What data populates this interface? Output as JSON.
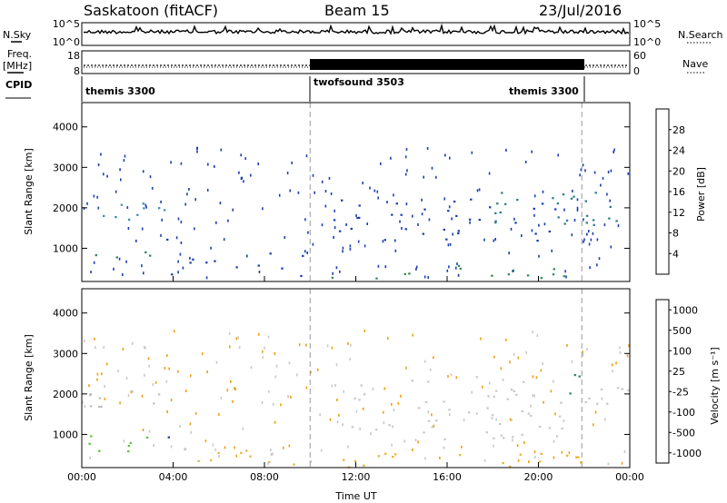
{
  "header": {
    "station": "Saskatoon (fitACF)",
    "beam": "Beam 15",
    "date": "23/Jul/2016"
  },
  "top_strips": {
    "nsky_label": "N.Sky",
    "nsky_ticks": [
      "10^5",
      "10^0"
    ],
    "nsearch_label": "N.Search",
    "nsearch_ticks": [
      "10^5",
      "10^0"
    ],
    "freq_label_1": "Freq.",
    "freq_label_2": "[MHz]",
    "freq_ticks": [
      "18",
      "8"
    ],
    "nave_label": "Nave",
    "nave_ticks": [
      "60",
      "0"
    ],
    "cpid_label": "CPID",
    "cpid_modes": [
      "themis 3300",
      "twofsound 3503",
      "themis 3300"
    ]
  },
  "chart_data": [
    {
      "type": "heatmap",
      "name": "power-panel",
      "ylabel": "Slant Range [km]",
      "xlim_hours": [
        0,
        24
      ],
      "ylim_km": [
        180,
        4600
      ],
      "y_ticks": [
        "1000",
        "2000",
        "3000",
        "4000"
      ],
      "x_ticks": [
        "00:00",
        "04:00",
        "08:00",
        "12:00",
        "16:00",
        "20:00",
        "00:00"
      ],
      "colorbar": {
        "label": "Power [dB]",
        "ticks": [
          "4",
          "8",
          "12",
          "16",
          "20",
          "24",
          "28"
        ],
        "colors": [
          "#0000ee",
          "#1c3fb0",
          "#2e7d8c",
          "#2e8b57",
          "#7ccd3c",
          "#f0c419",
          "#f59a1a",
          "#f06018",
          "#e02020"
        ]
      },
      "vertical_markers_hours": [
        10.0,
        21.9
      ],
      "regions": [
        {
          "t": [
            0.2,
            3.7
          ],
          "r": [
            1650,
            2150
          ],
          "color": "#3a8fb0",
          "density": 0.6
        },
        {
          "t": [
            0.2,
            3.0
          ],
          "r": [
            650,
            950
          ],
          "color": "#2e8b57",
          "density": 0.6
        },
        {
          "t": [
            3.6,
            4.0
          ],
          "r": [
            300,
            1500
          ],
          "color": "#1c3fb0",
          "density": 0.5
        },
        {
          "t": [
            4.2,
            10.0
          ],
          "r": [
            300,
            1000
          ],
          "color": "#1c3fb0",
          "density": 0.3
        },
        {
          "t": [
            10.0,
            22.0
          ],
          "r": [
            250,
            600
          ],
          "color": "#2e8b57",
          "density": 0.4
        },
        {
          "t": [
            11.0,
            21.0
          ],
          "r": [
            1200,
            2300
          ],
          "color": "#1c3fb0",
          "density": 0.35
        },
        {
          "t": [
            18.0,
            24.0
          ],
          "r": [
            1600,
            2500
          ],
          "color": "#2e7d8c",
          "density": 0.55
        }
      ]
    },
    {
      "type": "heatmap",
      "name": "velocity-panel",
      "ylabel": "Slant Range [km]",
      "xlabel": "Time UT",
      "xlim_hours": [
        0,
        24
      ],
      "ylim_km": [
        180,
        4600
      ],
      "y_ticks": [
        "1000",
        "2000",
        "3000",
        "4000"
      ],
      "x_ticks": [
        "00:00",
        "04:00",
        "08:00",
        "12:00",
        "16:00",
        "20:00",
        "00:00"
      ],
      "colorbar": {
        "label": "Velocity [m s⁻¹]",
        "ticks": [
          "1000",
          "500",
          "100",
          "25",
          "-25",
          "-100",
          "-500",
          "-1000"
        ],
        "colors": [
          "#1a3fa8",
          "#2e8b57",
          "#5cc43a",
          "#c8c8c8",
          "#c8c8c8",
          "#f0a010",
          "#f07010",
          "#e02020"
        ]
      },
      "vertical_markers_hours": [
        10.0,
        21.9
      ],
      "regions": [
        {
          "t": [
            0.2,
            3.7
          ],
          "r": [
            1700,
            2100
          ],
          "color": "#bdbdbd",
          "density": 0.8
        },
        {
          "t": [
            0.2,
            3.0
          ],
          "r": [
            600,
            1000
          ],
          "color": "#5cc43a",
          "density": 0.7
        },
        {
          "t": [
            3.6,
            4.0
          ],
          "r": [
            600,
            1400
          ],
          "color": "#1a3fa8",
          "density": 0.5
        },
        {
          "t": [
            5.0,
            10.0
          ],
          "r": [
            250,
            900
          ],
          "color": "#f0b040",
          "density": 0.3
        },
        {
          "t": [
            10.0,
            22.0
          ],
          "r": [
            200,
            550
          ],
          "color": "#f0b020",
          "density": 0.5
        },
        {
          "t": [
            11.0,
            21.0
          ],
          "r": [
            900,
            2500
          ],
          "color": "#c8c8c8",
          "density": 0.35
        },
        {
          "t": [
            21.3,
            22.0
          ],
          "r": [
            1800,
            2600
          ],
          "color": "#2e8b57",
          "density": 0.6
        },
        {
          "t": [
            22.0,
            24.0
          ],
          "r": [
            1600,
            2300
          ],
          "color": "#c8c8c8",
          "density": 0.7
        }
      ]
    }
  ]
}
